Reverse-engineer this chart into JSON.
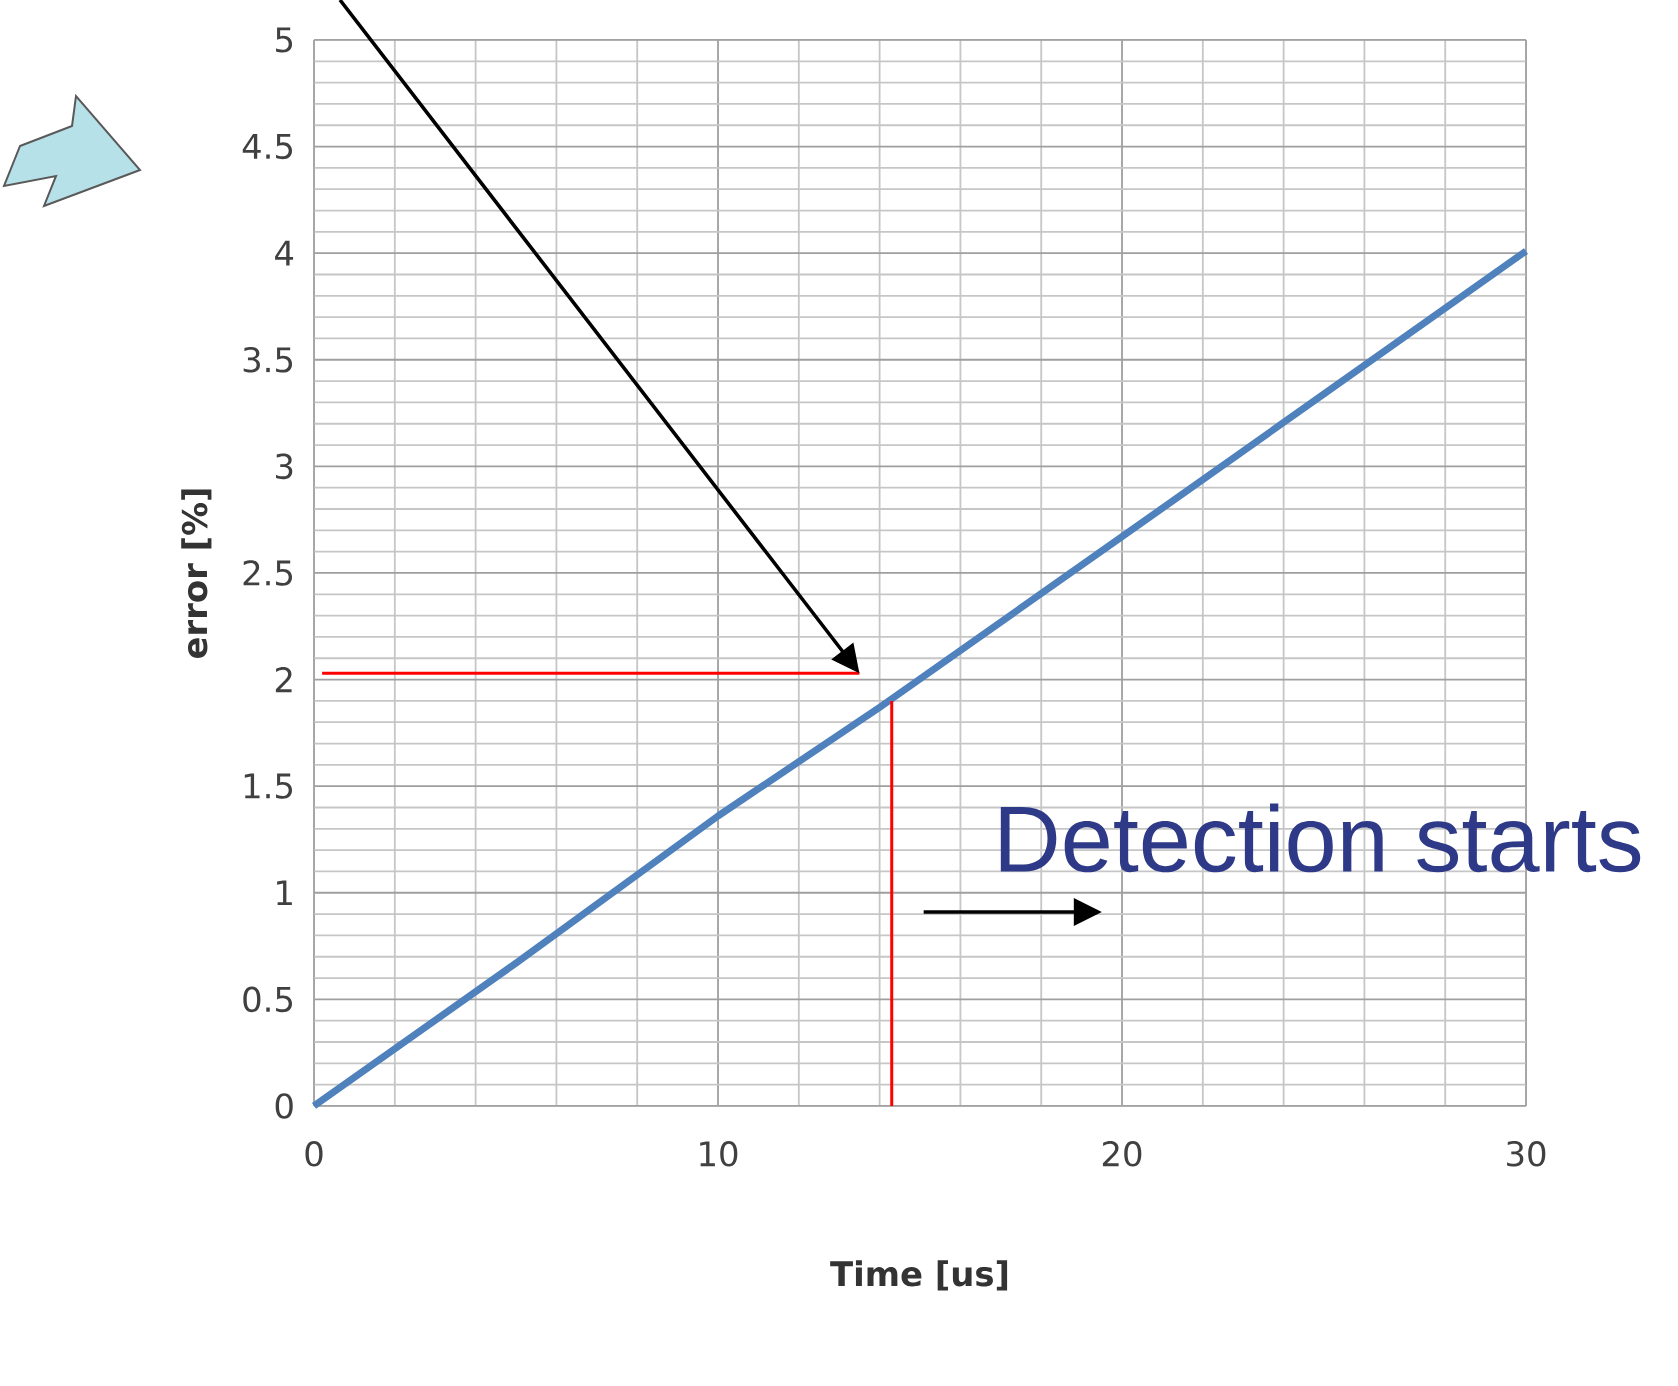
{
  "chart_data": {
    "type": "line",
    "xlabel": "Time [us]",
    "ylabel": "error [%]",
    "xlim": [
      0,
      30
    ],
    "ylim": [
      0,
      5
    ],
    "xticks": [
      0,
      10,
      20,
      30
    ],
    "yticks": [
      0,
      0.5,
      1,
      1.5,
      2,
      2.5,
      3,
      3.5,
      4,
      4.5,
      5
    ],
    "grid": true,
    "series": [
      {
        "color": "#4f81bd",
        "x": [
          0,
          5,
          10,
          14,
          20,
          25,
          30
        ],
        "values": [
          0,
          0.67,
          1.36,
          1.87,
          2.67,
          3.34,
          4.01
        ]
      },
      {
        "color": "#ff0000",
        "x": [
          0.2,
          13.5
        ],
        "values": [
          2.03,
          2.03
        ]
      },
      {
        "color": "#ff0000",
        "x": [
          14.3,
          14.3
        ],
        "values": [
          1.9,
          0
        ]
      }
    ],
    "annotations": [
      "Detection starts"
    ]
  }
}
